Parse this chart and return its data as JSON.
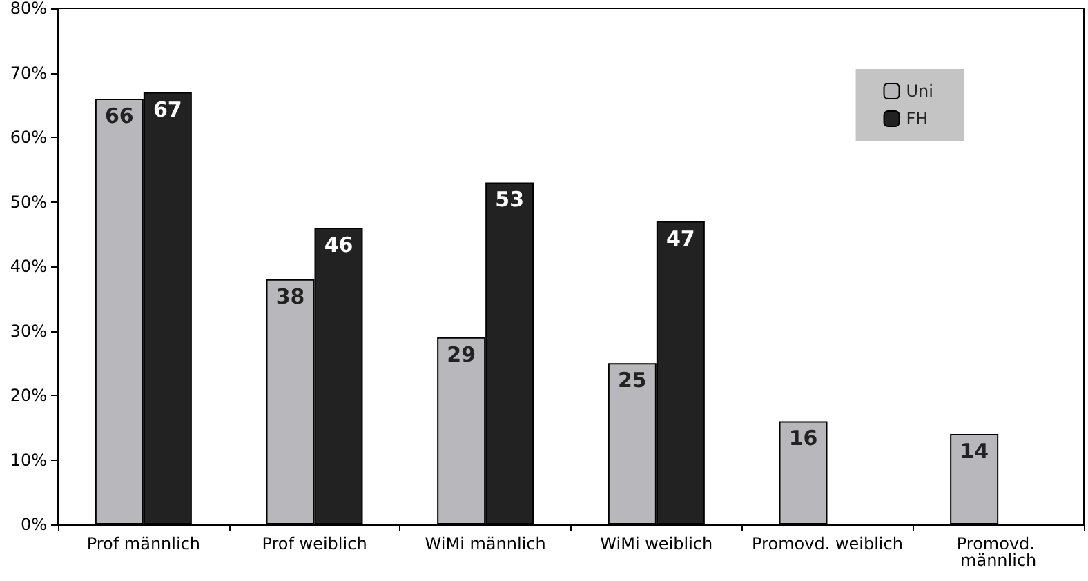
{
  "chart_data": {
    "type": "bar",
    "categories": [
      "Prof männlich",
      "Prof weiblich",
      "WiMi männlich",
      "WiMi weiblich",
      "Promovd. weiblich",
      "Promovd. männlich"
    ],
    "series": [
      {
        "name": "Uni",
        "color": "#b8b8bc",
        "values": [
          66,
          38,
          29,
          25,
          16,
          14
        ]
      },
      {
        "name": "FH",
        "color": "#222222",
        "values": [
          67,
          46,
          53,
          47,
          null,
          null
        ]
      }
    ],
    "ylim": [
      0,
      80
    ],
    "yticks": [
      {
        "value": 0,
        "label": "0%"
      },
      {
        "value": 10,
        "label": "10%"
      },
      {
        "value": 20,
        "label": "20%"
      },
      {
        "value": 30,
        "label": "30%"
      },
      {
        "value": 40,
        "label": "40%"
      },
      {
        "value": 50,
        "label": "50%"
      },
      {
        "value": 60,
        "label": "60%"
      },
      {
        "value": 70,
        "label": "70%"
      },
      {
        "value": 80,
        "label": "80%"
      }
    ],
    "data_labels": true,
    "grid": false,
    "legend": "top right"
  }
}
